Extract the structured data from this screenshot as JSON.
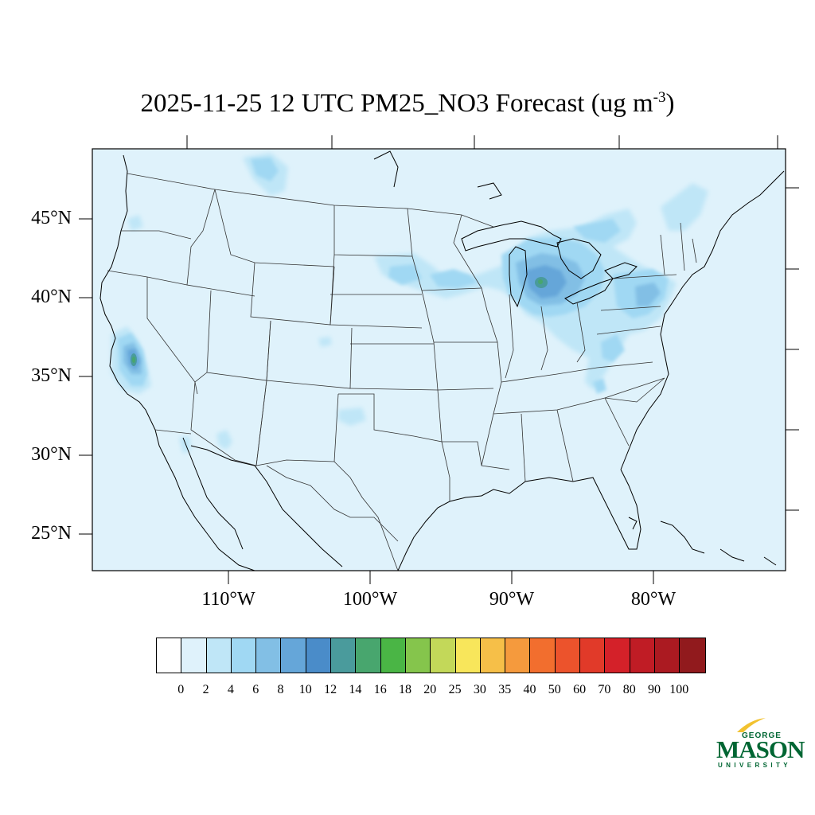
{
  "title": {
    "main": "2025-11-25 12 UTC PM25_NO3 Forecast (ug m",
    "superscript": "-3",
    "close": ")"
  },
  "map": {
    "background_color": "#dff2fb",
    "lat_labels": [
      "45°N",
      "40°N",
      "35°N",
      "30°N",
      "25°N"
    ],
    "lon_labels": [
      "110°W",
      "100°W",
      "90°W",
      "80°W"
    ]
  },
  "colorbar": {
    "labels": [
      "0",
      "2",
      "4",
      "6",
      "8",
      "10",
      "12",
      "14",
      "16",
      "18",
      "20",
      "25",
      "30",
      "35",
      "40",
      "50",
      "60",
      "70",
      "80",
      "90",
      "100"
    ],
    "colors": [
      "#ffffff",
      "#dff2fb",
      "#bfe6f7",
      "#a0d8f3",
      "#82bfe5",
      "#65a6d9",
      "#4a8cc9",
      "#4a9b9c",
      "#48a66e",
      "#4ab545",
      "#85c54c",
      "#c3d859",
      "#f8e65b",
      "#f6bf48",
      "#f59a3d",
      "#f26e2e",
      "#ec532c",
      "#e13a29",
      "#d42129",
      "#c01c25",
      "#ab1a21",
      "#911a1d"
    ]
  },
  "logo": {
    "line1": "GEORGE",
    "line2": "MASON",
    "line3": "UNIVERSITY",
    "color": "#006633",
    "accent": "#f2c230"
  }
}
